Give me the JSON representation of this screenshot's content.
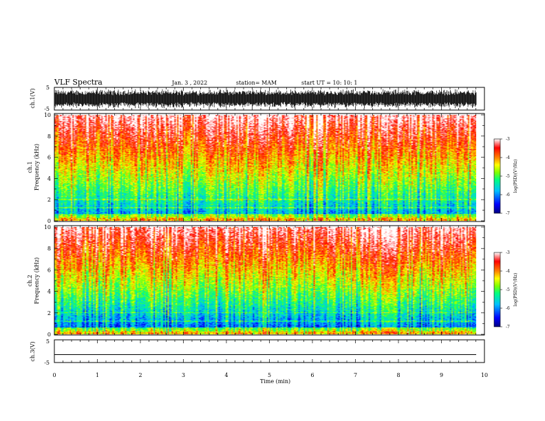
{
  "header": {
    "title": "VLF Spectra",
    "date": "Jan. 3 , 2022",
    "station": "station= MAM",
    "start": "start UT = 10: 10: 1"
  },
  "chart_data": [
    {
      "type": "line",
      "name": "ch1-waveform",
      "ylabel": "ch.1(V)",
      "ylim": [
        -5,
        5
      ],
      "y_ticks": [
        "-5",
        "5"
      ],
      "xlim": [
        0,
        10
      ],
      "description_values": {
        "amplitude_min": -5,
        "amplitude_max": 5
      }
    },
    {
      "type": "heatmap",
      "name": "ch1-spectrogram",
      "ylabel": "ch.1\nFrequency (kHz)",
      "ylabel_line1": "ch.1",
      "ylabel_line2": "Frequency (kHz)",
      "ylim": [
        0,
        10
      ],
      "y_ticks": [
        "0",
        "2",
        "4",
        "6",
        "8",
        "10"
      ],
      "xlim": [
        0,
        9.8
      ],
      "colorbar": {
        "label": "log(PSD)(V²/Hz)",
        "range": [
          -7,
          -3
        ],
        "ticks": [
          "-7",
          "-6",
          "-5",
          "-4",
          "-3"
        ]
      }
    },
    {
      "type": "heatmap",
      "name": "ch2-spectrogram",
      "ylabel_line1": "ch.2",
      "ylabel_line2": "Frequency (kHz)",
      "ylim": [
        0,
        10
      ],
      "y_ticks": [
        "0",
        "2",
        "4",
        "6",
        "8",
        "10"
      ],
      "xlim": [
        0,
        9.8
      ],
      "colorbar": {
        "label": "log(PSD)(V²/Hz)",
        "range": [
          -7,
          -3
        ],
        "ticks": [
          "-7",
          "-6",
          "-5",
          "-4",
          "-3"
        ]
      }
    },
    {
      "type": "line",
      "name": "ch3-waveform",
      "ylabel": "ch.3(V)",
      "ylim": [
        -5,
        5
      ],
      "y_ticks": [
        "-5",
        "5"
      ],
      "values_constant": -1.5
    }
  ],
  "x_axis": {
    "label": "Time (min)",
    "ticks": [
      "0",
      "1",
      "2",
      "3",
      "4",
      "5",
      "6",
      "7",
      "8",
      "9",
      "10"
    ],
    "range": [
      0,
      10
    ]
  },
  "colors": {
    "cmap": [
      "#000080",
      "#0000ff",
      "#00c0ff",
      "#00ff80",
      "#80ff00",
      "#ffff00",
      "#ff8000",
      "#ff0000",
      "#ffffff"
    ]
  }
}
